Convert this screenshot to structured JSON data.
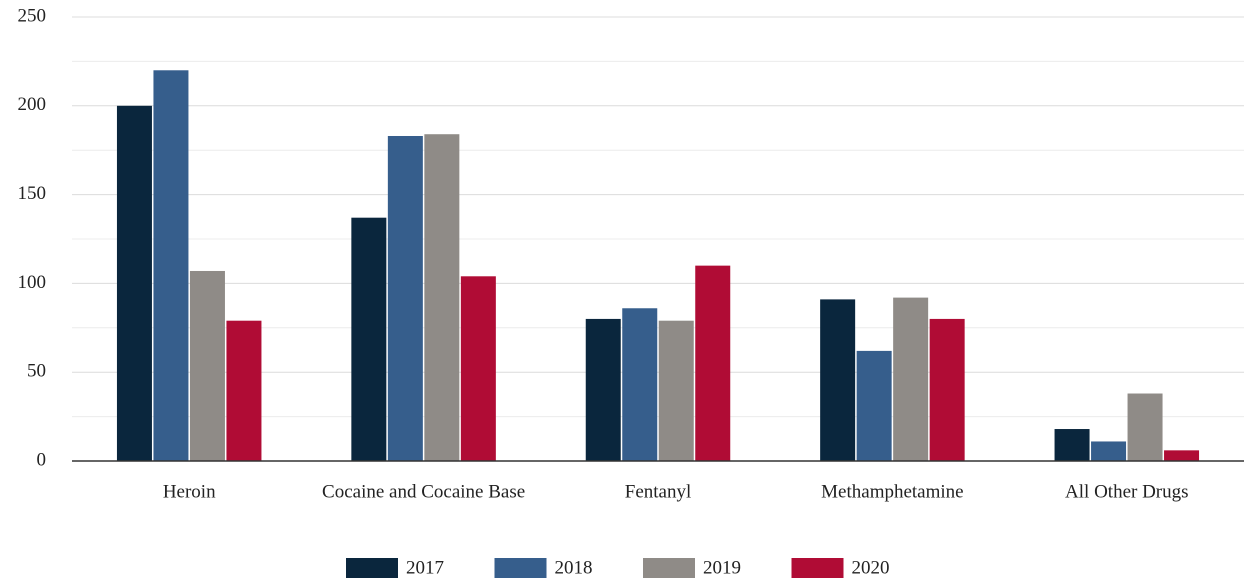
{
  "chart_data": {
    "type": "bar",
    "categories": [
      "Heroin",
      "Cocaine and Cocaine Base",
      "Fentanyl",
      "Methamphetamine",
      "All Other Drugs"
    ],
    "series": [
      {
        "name": "2017",
        "color": "#0a263d",
        "values": [
          200,
          137,
          80,
          91,
          18
        ]
      },
      {
        "name": "2018",
        "color": "#365e8c",
        "values": [
          220,
          183,
          86,
          62,
          11
        ]
      },
      {
        "name": "2019",
        "color": "#8f8b87",
        "values": [
          107,
          184,
          79,
          92,
          38
        ]
      },
      {
        "name": "2020",
        "color": "#b00c35",
        "values": [
          79,
          104,
          110,
          80,
          6
        ]
      }
    ],
    "ylim": [
      0,
      250
    ],
    "yticks": [
      0,
      50,
      100,
      150,
      200,
      250
    ],
    "grid": true,
    "minor_grid": true,
    "legend": "bottom"
  }
}
